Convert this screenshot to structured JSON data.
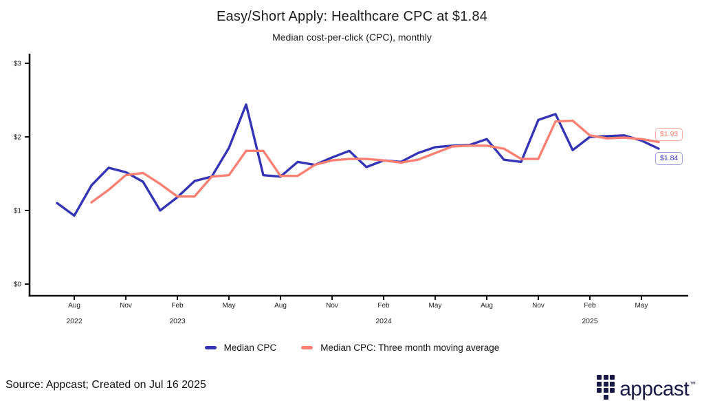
{
  "chart_data": {
    "type": "line",
    "title": "Easy/Short Apply: Healthcare CPC at $1.84",
    "subtitle": "Median cost-per-click (CPC), monthly",
    "xlabel": "",
    "ylabel": "",
    "ylim": [
      0,
      3.15
    ],
    "grid": false,
    "legend_position": "bottom",
    "months": [
      "Jul 2022",
      "Aug 2022",
      "Sep 2022",
      "Oct 2022",
      "Nov 2022",
      "Dec 2022",
      "Jan 2023",
      "Feb 2023",
      "Mar 2023",
      "Apr 2023",
      "May 2023",
      "Jun 2023",
      "Jul 2023",
      "Aug 2023",
      "Sep 2023",
      "Oct 2023",
      "Nov 2023",
      "Dec 2023",
      "Jan 2024",
      "Feb 2024",
      "Mar 2024",
      "Apr 2024",
      "May 2024",
      "Jun 2024",
      "Jul 2024",
      "Aug 2024",
      "Sep 2024",
      "Oct 2024",
      "Nov 2024",
      "Dec 2024",
      "Jan 2025",
      "Feb 2025",
      "Mar 2025",
      "Apr 2025",
      "May 2025",
      "Jun 2025"
    ],
    "series": [
      {
        "name": "Median CPC",
        "color": "#3434b4",
        "start_month_index": 0,
        "values": [
          1.1,
          0.93,
          1.34,
          1.58,
          1.52,
          1.39,
          1.0,
          1.18,
          1.4,
          1.46,
          1.85,
          2.44,
          1.48,
          1.46,
          1.66,
          1.62,
          1.72,
          1.81,
          1.59,
          1.68,
          1.66,
          1.78,
          1.86,
          1.88,
          1.89,
          1.97,
          1.69,
          1.66,
          2.23,
          2.31,
          1.82,
          2.0,
          2.01,
          2.02,
          1.95,
          1.84
        ]
      },
      {
        "name": "Median CPC: Three month moving average",
        "color": "#fa8073",
        "start_month_index": 2,
        "values": [
          1.11,
          1.28,
          1.48,
          1.51,
          1.36,
          1.19,
          1.19,
          1.46,
          1.48,
          1.81,
          1.81,
          1.47,
          1.47,
          1.62,
          1.68,
          1.7,
          1.7,
          1.68,
          1.65,
          1.69,
          1.78,
          1.87,
          1.88,
          1.88,
          1.84,
          1.7,
          1.7,
          2.21,
          2.22,
          2.02,
          1.98,
          1.99,
          1.97,
          1.93
        ]
      }
    ],
    "y_tick_values": [
      0,
      1,
      2,
      3
    ],
    "y_tick_labels": [
      "$0",
      "$1",
      "$2",
      "$3"
    ],
    "x_ticks": [
      {
        "index": 1,
        "label": "Aug"
      },
      {
        "index": 4,
        "label": "Nov"
      },
      {
        "index": 7,
        "label": "Feb"
      },
      {
        "index": 10,
        "label": "May"
      },
      {
        "index": 13,
        "label": "Aug"
      },
      {
        "index": 16,
        "label": "Nov"
      },
      {
        "index": 19,
        "label": "Feb"
      },
      {
        "index": 22,
        "label": "May"
      },
      {
        "index": 25,
        "label": "Aug"
      },
      {
        "index": 28,
        "label": "Nov"
      },
      {
        "index": 31,
        "label": "Feb"
      },
      {
        "index": 34,
        "label": "May"
      }
    ],
    "year_labels": [
      {
        "index": 1,
        "label": "2022"
      },
      {
        "index": 7,
        "label": "2023"
      },
      {
        "index": 19,
        "label": "2024"
      },
      {
        "index": 31,
        "label": "2025"
      }
    ],
    "end_labels": [
      {
        "text": "$1.93",
        "series": "Median CPC: Three month moving average",
        "color": "#fa8073"
      },
      {
        "text": "$1.84",
        "series": "Median CPC",
        "color": "#3434b4"
      }
    ]
  },
  "footer": {
    "source_note": "Source: Appcast; Created on Jul 16 2025",
    "logo_text": "appcast",
    "logo_tm": "™"
  }
}
